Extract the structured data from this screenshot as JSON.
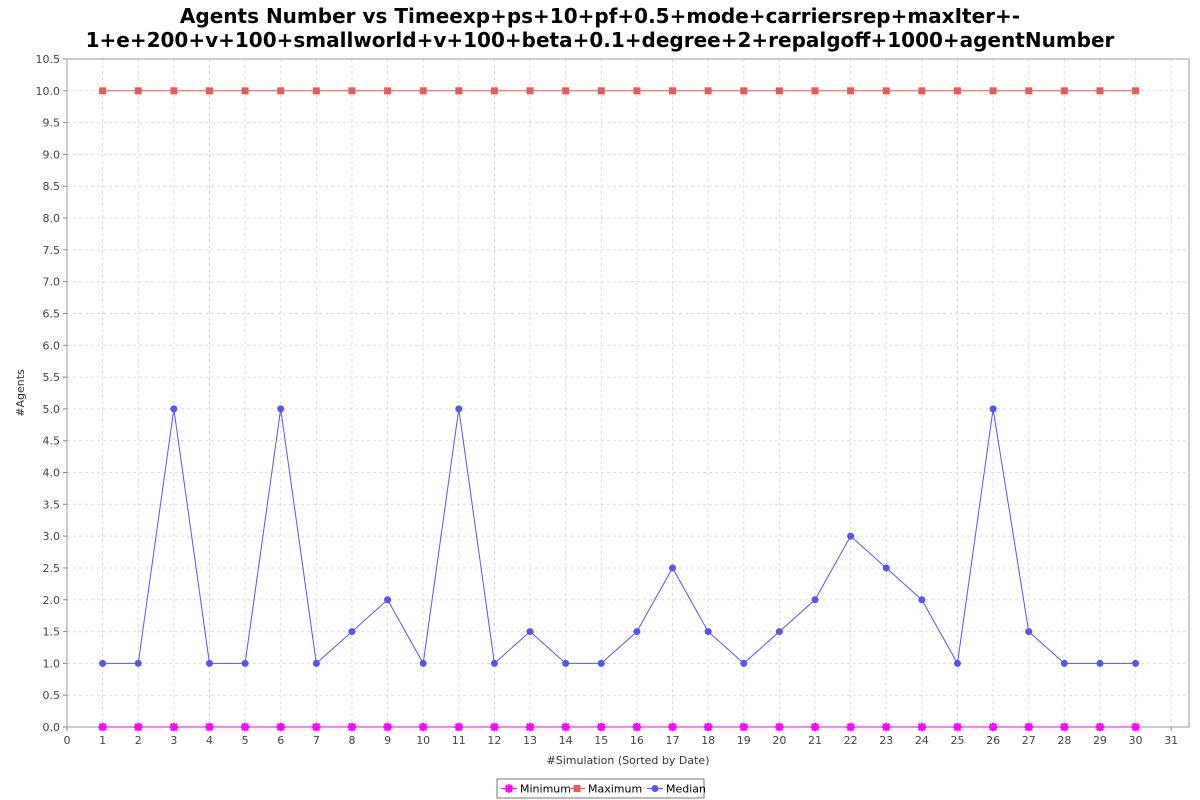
{
  "chart_data": {
    "type": "line",
    "title_line1": "Agents Number vs Timeexp+ps+10+pf+0.5+mode+carriersrep+maxIter+-",
    "title_line2": "1+e+200+v+100+smallworld+v+100+beta+0.1+degree+2+repalgoff+1000+agentNumber",
    "xlabel": "#Simulation (Sorted by Date)",
    "ylabel": "#Agents",
    "xlim": [
      0,
      31.5
    ],
    "ylim": [
      0,
      10.5
    ],
    "x_ticks": [
      "0",
      "1",
      "2",
      "3",
      "4",
      "5",
      "6",
      "7",
      "8",
      "9",
      "10",
      "11",
      "12",
      "13",
      "14",
      "15",
      "16",
      "17",
      "18",
      "19",
      "20",
      "21",
      "22",
      "23",
      "24",
      "25",
      "26",
      "27",
      "28",
      "29",
      "30",
      "31"
    ],
    "y_ticks": [
      "0.0",
      "0.5",
      "1.0",
      "1.5",
      "2.0",
      "2.5",
      "3.0",
      "3.5",
      "4.0",
      "4.5",
      "5.0",
      "5.5",
      "6.0",
      "6.5",
      "7.0",
      "7.5",
      "8.0",
      "8.5",
      "9.0",
      "9.5",
      "10.0",
      "10.5"
    ],
    "grid": true,
    "legend_position": "bottom",
    "x": [
      1,
      2,
      3,
      4,
      5,
      6,
      7,
      8,
      9,
      10,
      11,
      12,
      13,
      14,
      15,
      16,
      17,
      18,
      19,
      20,
      21,
      22,
      23,
      24,
      25,
      26,
      27,
      28,
      29,
      30
    ],
    "series": [
      {
        "name": "Minimum",
        "color": "#ff00ff",
        "marker": "x-cross",
        "values": [
          0,
          0,
          0,
          0,
          0,
          0,
          0,
          0,
          0,
          0,
          0,
          0,
          0,
          0,
          0,
          0,
          0,
          0,
          0,
          0,
          0,
          0,
          0,
          0,
          0,
          0,
          0,
          0,
          0,
          0
        ]
      },
      {
        "name": "Maximum",
        "color": "#e85a5a",
        "marker": "square",
        "values": [
          10,
          10,
          10,
          10,
          10,
          10,
          10,
          10,
          10,
          10,
          10,
          10,
          10,
          10,
          10,
          10,
          10,
          10,
          10,
          10,
          10,
          10,
          10,
          10,
          10,
          10,
          10,
          10,
          10,
          10
        ]
      },
      {
        "name": "Median",
        "color": "#5555ee",
        "marker": "circle",
        "values": [
          1,
          1,
          5,
          1,
          1,
          5,
          1,
          1.5,
          2,
          1,
          5,
          1,
          1.5,
          1,
          1,
          1.5,
          2.5,
          1.5,
          1,
          1.5,
          2,
          3,
          2.5,
          2,
          1,
          5,
          1.5,
          1,
          1,
          1
        ]
      }
    ]
  }
}
